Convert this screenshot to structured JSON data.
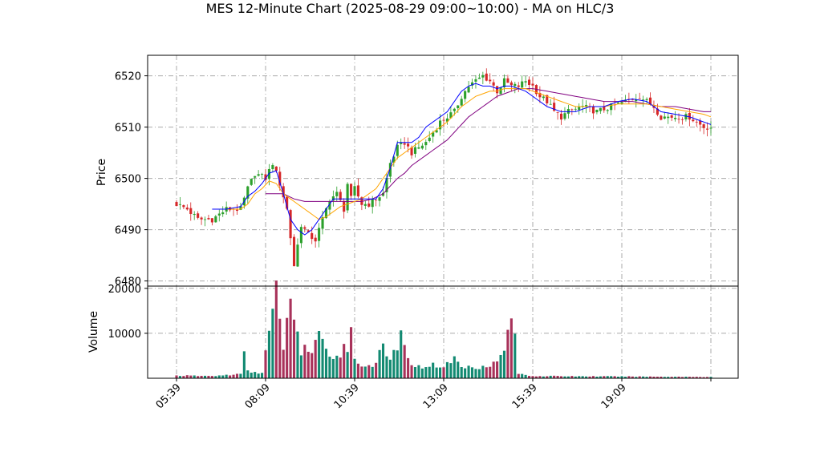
{
  "chart_data": {
    "type": "candlestick",
    "title": "MES 12-Minute Chart (2025-08-29 09:00~10:00) - MA on HLC/3",
    "price_panel": {
      "ylabel": "Price",
      "ylim": [
        6479,
        6524
      ],
      "yticks": [
        6480,
        6490,
        6500,
        6510,
        6520
      ],
      "grid": true
    },
    "volume_panel": {
      "ylabel": "Volume",
      "ylim": [
        0,
        20500
      ],
      "yticks": [
        10000,
        20000
      ],
      "grid": true
    },
    "x_axis": {
      "tick_labels": [
        "05:39",
        "08:09",
        "10:39",
        "13:09",
        "15:39",
        "19:09"
      ],
      "tick_indices": [
        0,
        25,
        50,
        75,
        100,
        125
      ],
      "last_index": 150
    },
    "colors": {
      "up_candle": "#2ca02c",
      "down_candle": "#d62728",
      "up_volume": "#138a72",
      "down_volume": "#a8325a",
      "ma_short": "#0000ff",
      "ma_medium": "#ffa500",
      "ma_long": "#800080",
      "grid": "#aaaaaa"
    },
    "close_keypoints": [
      [
        0,
        6495
      ],
      [
        3,
        6494
      ],
      [
        6,
        6492
      ],
      [
        10,
        6492
      ],
      [
        14,
        6494
      ],
      [
        18,
        6494
      ],
      [
        20,
        6498
      ],
      [
        22,
        6501
      ],
      [
        25,
        6500
      ],
      [
        27,
        6503
      ],
      [
        29,
        6499
      ],
      [
        31,
        6494
      ],
      [
        33,
        6483
      ],
      [
        35,
        6491
      ],
      [
        37,
        6489
      ],
      [
        39,
        6488
      ],
      [
        41,
        6492
      ],
      [
        43,
        6496
      ],
      [
        45,
        6497
      ],
      [
        47,
        6494
      ],
      [
        48,
        6499
      ],
      [
        49,
        6496
      ],
      [
        50,
        6498
      ],
      [
        52,
        6495
      ],
      [
        54,
        6495
      ],
      [
        56,
        6496
      ],
      [
        58,
        6497
      ],
      [
        60,
        6503
      ],
      [
        62,
        6506
      ],
      [
        64,
        6507
      ],
      [
        66,
        6505
      ],
      [
        68,
        6506
      ],
      [
        70,
        6507
      ],
      [
        72,
        6509
      ],
      [
        74,
        6511
      ],
      [
        76,
        6512
      ],
      [
        78,
        6513
      ],
      [
        80,
        6516
      ],
      [
        82,
        6518
      ],
      [
        84,
        6519
      ],
      [
        86,
        6520
      ],
      [
        88,
        6519
      ],
      [
        90,
        6517
      ],
      [
        92,
        6519
      ],
      [
        94,
        6518
      ],
      [
        96,
        6518
      ],
      [
        98,
        6519
      ],
      [
        100,
        6518
      ],
      [
        102,
        6516
      ],
      [
        104,
        6515
      ],
      [
        106,
        6513
      ],
      [
        108,
        6512
      ],
      [
        110,
        6513
      ],
      [
        114,
        6514
      ],
      [
        118,
        6513
      ],
      [
        122,
        6514
      ],
      [
        126,
        6515
      ],
      [
        130,
        6516
      ],
      [
        134,
        6514
      ],
      [
        136,
        6512
      ],
      [
        140,
        6512
      ],
      [
        144,
        6512
      ],
      [
        148,
        6510
      ],
      [
        150,
        6510
      ]
    ],
    "volume_keypoints": [
      [
        0,
        600
      ],
      [
        10,
        500
      ],
      [
        18,
        900
      ],
      [
        19,
        6500
      ],
      [
        20,
        1500
      ],
      [
        24,
        1200
      ],
      [
        28,
        18800
      ],
      [
        29,
        11500
      ],
      [
        30,
        7500
      ],
      [
        31,
        14200
      ],
      [
        32,
        15200
      ],
      [
        33,
        12000
      ],
      [
        34,
        11500
      ],
      [
        35,
        6000
      ],
      [
        36,
        7000
      ],
      [
        38,
        5500
      ],
      [
        40,
        9200
      ],
      [
        42,
        6000
      ],
      [
        46,
        4500
      ],
      [
        47,
        9500
      ],
      [
        48,
        6500
      ],
      [
        49,
        10000
      ],
      [
        50,
        4000
      ],
      [
        52,
        3000
      ],
      [
        55,
        2800
      ],
      [
        58,
        6500
      ],
      [
        60,
        4000
      ],
      [
        63,
        9000
      ],
      [
        65,
        4000
      ],
      [
        68,
        2500
      ],
      [
        72,
        3000
      ],
      [
        75,
        2500
      ],
      [
        78,
        4500
      ],
      [
        80,
        2500
      ],
      [
        85,
        2500
      ],
      [
        90,
        3500
      ],
      [
        92,
        6500
      ],
      [
        93,
        10000
      ],
      [
        94,
        15200
      ],
      [
        95,
        8500
      ],
      [
        96,
        1000
      ],
      [
        100,
        500
      ],
      [
        150,
        300
      ]
    ],
    "ma_short_keypoints": [
      [
        10,
        6494
      ],
      [
        14,
        6494
      ],
      [
        18,
        6494.5
      ],
      [
        20,
        6496.5
      ],
      [
        22,
        6497.5
      ],
      [
        24,
        6499
      ],
      [
        26,
        6501
      ],
      [
        28,
        6501.5
      ],
      [
        30,
        6497
      ],
      [
        32,
        6492
      ],
      [
        34,
        6490
      ],
      [
        36,
        6489
      ],
      [
        38,
        6490
      ],
      [
        40,
        6492
      ],
      [
        42,
        6494
      ],
      [
        44,
        6496
      ],
      [
        46,
        6496
      ],
      [
        48,
        6496
      ],
      [
        50,
        6496
      ],
      [
        52,
        6496
      ],
      [
        54,
        6496
      ],
      [
        56,
        6496
      ],
      [
        58,
        6498
      ],
      [
        60,
        6502
      ],
      [
        62,
        6507
      ],
      [
        64,
        6507
      ],
      [
        66,
        6507
      ],
      [
        68,
        6508
      ],
      [
        70,
        6510
      ],
      [
        72,
        6511
      ],
      [
        74,
        6512
      ],
      [
        76,
        6513
      ],
      [
        78,
        6515
      ],
      [
        80,
        6517
      ],
      [
        82,
        6518
      ],
      [
        84,
        6518.5
      ],
      [
        86,
        6518
      ],
      [
        88,
        6518
      ],
      [
        90,
        6517.5
      ],
      [
        92,
        6518
      ],
      [
        94,
        6518
      ],
      [
        96,
        6517.5
      ],
      [
        98,
        6517
      ],
      [
        100,
        6516
      ],
      [
        102,
        6515
      ],
      [
        104,
        6514
      ],
      [
        106,
        6513.5
      ],
      [
        108,
        6513
      ],
      [
        110,
        6513
      ],
      [
        112,
        6513
      ],
      [
        116,
        6514
      ],
      [
        120,
        6514
      ],
      [
        124,
        6515
      ],
      [
        128,
        6515.5
      ],
      [
        132,
        6515
      ],
      [
        136,
        6513
      ],
      [
        140,
        6512.5
      ],
      [
        144,
        6512
      ],
      [
        148,
        6511
      ],
      [
        150,
        6510.5
      ]
    ],
    "ma_medium_keypoints": [
      [
        14,
        6494
      ],
      [
        18,
        6494
      ],
      [
        20,
        6495
      ],
      [
        22,
        6497
      ],
      [
        24,
        6498
      ],
      [
        26,
        6499.5
      ],
      [
        28,
        6499
      ],
      [
        30,
        6497
      ],
      [
        32,
        6496
      ],
      [
        34,
        6495
      ],
      [
        36,
        6494
      ],
      [
        38,
        6493
      ],
      [
        40,
        6492
      ],
      [
        42,
        6492.5
      ],
      [
        44,
        6493.5
      ],
      [
        46,
        6494.5
      ],
      [
        48,
        6495
      ],
      [
        50,
        6495.5
      ],
      [
        52,
        6496
      ],
      [
        54,
        6497
      ],
      [
        56,
        6498
      ],
      [
        58,
        6500
      ],
      [
        60,
        6502
      ],
      [
        62,
        6504
      ],
      [
        64,
        6505
      ],
      [
        66,
        6506
      ],
      [
        68,
        6507
      ],
      [
        70,
        6508
      ],
      [
        72,
        6509
      ],
      [
        74,
        6510
      ],
      [
        76,
        6511
      ],
      [
        78,
        6512.5
      ],
      [
        80,
        6514
      ],
      [
        82,
        6515
      ],
      [
        84,
        6516
      ],
      [
        86,
        6516.5
      ],
      [
        88,
        6517
      ],
      [
        90,
        6517
      ],
      [
        92,
        6517.5
      ],
      [
        94,
        6517.5
      ],
      [
        96,
        6517.5
      ],
      [
        98,
        6517.5
      ],
      [
        100,
        6517
      ],
      [
        104,
        6516
      ],
      [
        108,
        6515
      ],
      [
        112,
        6514
      ],
      [
        116,
        6514
      ],
      [
        120,
        6514
      ],
      [
        124,
        6514.5
      ],
      [
        128,
        6514.5
      ],
      [
        132,
        6514.5
      ],
      [
        136,
        6514
      ],
      [
        140,
        6513.5
      ],
      [
        144,
        6513
      ],
      [
        148,
        6512.5
      ],
      [
        150,
        6512
      ]
    ],
    "ma_long_keypoints": [
      [
        25,
        6497
      ],
      [
        28,
        6497
      ],
      [
        30,
        6497
      ],
      [
        33,
        6496
      ],
      [
        36,
        6495.5
      ],
      [
        40,
        6495.5
      ],
      [
        44,
        6495.5
      ],
      [
        48,
        6495.5
      ],
      [
        52,
        6495.5
      ],
      [
        55,
        6496
      ],
      [
        58,
        6497
      ],
      [
        60,
        6498.5
      ],
      [
        62,
        6500
      ],
      [
        64,
        6501
      ],
      [
        66,
        6502.5
      ],
      [
        68,
        6503.5
      ],
      [
        70,
        6504.5
      ],
      [
        72,
        6505.5
      ],
      [
        74,
        6506.5
      ],
      [
        76,
        6507.5
      ],
      [
        78,
        6509
      ],
      [
        80,
        6510.5
      ],
      [
        82,
        6512
      ],
      [
        84,
        6513
      ],
      [
        86,
        6514
      ],
      [
        88,
        6515
      ],
      [
        90,
        6516
      ],
      [
        92,
        6516.5
      ],
      [
        94,
        6517
      ],
      [
        96,
        6517.5
      ],
      [
        100,
        6517.5
      ],
      [
        104,
        6517
      ],
      [
        108,
        6516.5
      ],
      [
        112,
        6516
      ],
      [
        116,
        6515.5
      ],
      [
        120,
        6515
      ],
      [
        124,
        6515
      ],
      [
        128,
        6515
      ],
      [
        132,
        6514.5
      ],
      [
        136,
        6514
      ],
      [
        140,
        6514
      ],
      [
        144,
        6513.5
      ],
      [
        148,
        6513
      ],
      [
        150,
        6513
      ]
    ]
  }
}
